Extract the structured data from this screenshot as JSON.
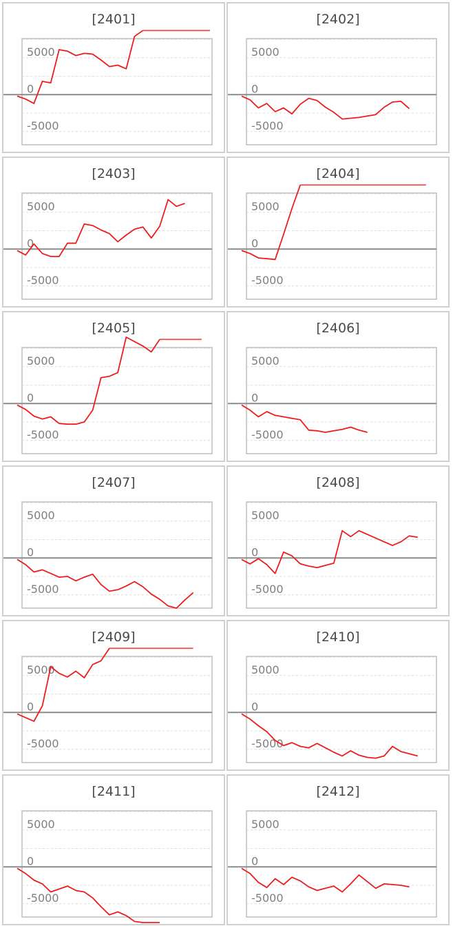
{
  "chart_data": [
    {
      "type": "line",
      "title": "[2401]",
      "ylim": [
        -6800,
        7600
      ],
      "yticks": [
        5000,
        0,
        -5000
      ],
      "series": [
        {
          "color": "#ee1c1c",
          "values": [
            -200,
            -600,
            -1200,
            1800,
            1600,
            6100,
            5900,
            5300,
            5600,
            5500,
            4700,
            3800,
            4000,
            3500,
            7900,
            8700,
            8700,
            8700,
            8700,
            8700,
            8700,
            8700,
            8700,
            8700
          ]
        }
      ]
    },
    {
      "type": "line",
      "title": "[2402]",
      "ylim": [
        -6800,
        7600
      ],
      "yticks": [
        5000,
        0,
        -5000
      ],
      "series": [
        {
          "color": "#ee1c1c",
          "values": [
            -200,
            -700,
            -1800,
            -1200,
            -2300,
            -1800,
            -2600,
            -1300,
            -500,
            -800,
            -1700,
            -2400,
            -3300,
            -3200,
            -3100,
            -2900,
            -2700,
            -1700,
            -1000,
            -900,
            -1900
          ]
        }
      ]
    },
    {
      "type": "line",
      "title": "[2403]",
      "ylim": [
        -6800,
        7600
      ],
      "yticks": [
        5000,
        0,
        -5000
      ],
      "series": [
        {
          "color": "#ee1c1c",
          "values": [
            -200,
            -800,
            700,
            -600,
            -1000,
            -1000,
            800,
            800,
            3400,
            3200,
            2600,
            2100,
            1000,
            1900,
            2700,
            3000,
            1500,
            3100,
            6700,
            5800,
            6200
          ]
        }
      ]
    },
    {
      "type": "line",
      "title": "[2404]",
      "ylim": [
        -6800,
        7600
      ],
      "yticks": [
        5000,
        0,
        -5000
      ],
      "series": [
        {
          "color": "#ee1c1c",
          "values": [
            -200,
            -600,
            -1200,
            -1300,
            -1400,
            2000,
            5500,
            8700,
            8700,
            8700,
            8700,
            8700,
            8700,
            8700,
            8700,
            8700,
            8700,
            8700,
            8700,
            8700,
            8700,
            8700,
            8700
          ]
        }
      ]
    },
    {
      "type": "line",
      "title": "[2405]",
      "ylim": [
        -6800,
        7600
      ],
      "yticks": [
        5000,
        0,
        -5000
      ],
      "series": [
        {
          "color": "#ee1c1c",
          "values": [
            -200,
            -800,
            -1700,
            -2100,
            -1800,
            -2700,
            -2800,
            -2800,
            -2500,
            -900,
            3500,
            3700,
            4200,
            9000,
            8400,
            7800,
            7000,
            8700,
            8700,
            8700,
            8700,
            8700,
            8700
          ]
        }
      ]
    },
    {
      "type": "line",
      "title": "[2406]",
      "ylim": [
        -6800,
        7600
      ],
      "yticks": [
        5000,
        0,
        -5000
      ],
      "series": [
        {
          "color": "#ee1c1c",
          "values": [
            -200,
            -900,
            -1800,
            -1100,
            -1600,
            -1800,
            -2000,
            -2200,
            -3600,
            -3700,
            -3900,
            -3700,
            -3500,
            -3200,
            -3600,
            -3900
          ]
        }
      ]
    },
    {
      "type": "line",
      "title": "[2407]",
      "ylim": [
        -6800,
        7600
      ],
      "yticks": [
        5000,
        0,
        -5000
      ],
      "series": [
        {
          "color": "#ee1c1c",
          "values": [
            -200,
            -900,
            -1900,
            -1600,
            -2100,
            -2600,
            -2500,
            -3100,
            -2600,
            -2200,
            -3600,
            -4500,
            -4300,
            -3800,
            -3200,
            -3900,
            -4900,
            -5600,
            -6500,
            -6800,
            -5700,
            -4700
          ]
        }
      ]
    },
    {
      "type": "line",
      "title": "[2408]",
      "ylim": [
        -6800,
        7600
      ],
      "yticks": [
        5000,
        0,
        -5000
      ],
      "series": [
        {
          "color": "#ee1c1c",
          "values": [
            -200,
            -800,
            -100,
            -900,
            -2100,
            800,
            300,
            -800,
            -1100,
            -1300,
            -1000,
            -700,
            3700,
            2900,
            3700,
            3200,
            2700,
            2200,
            1700,
            2200,
            3000,
            2800
          ]
        }
      ]
    },
    {
      "type": "line",
      "title": "[2409]",
      "ylim": [
        -6800,
        7600
      ],
      "yticks": [
        5000,
        0,
        -5000
      ],
      "series": [
        {
          "color": "#ee1c1c",
          "values": [
            -200,
            -700,
            -1200,
            900,
            6200,
            5300,
            4800,
            5600,
            4700,
            6500,
            7000,
            8700,
            8700,
            8700,
            8700,
            8700,
            8700,
            8700,
            8700,
            8700,
            8700,
            8700
          ]
        }
      ]
    },
    {
      "type": "line",
      "title": "[2410]",
      "ylim": [
        -6800,
        7600
      ],
      "yticks": [
        5000,
        0,
        -5000
      ],
      "series": [
        {
          "color": "#ee1c1c",
          "values": [
            -200,
            -900,
            -1800,
            -2600,
            -3800,
            -4500,
            -4100,
            -4600,
            -4800,
            -4200,
            -4800,
            -5400,
            -5900,
            -5200,
            -5800,
            -6100,
            -6200,
            -5900,
            -4600,
            -5300,
            -5600,
            -5900
          ]
        }
      ]
    },
    {
      "type": "line",
      "title": "[2411]",
      "ylim": [
        -6800,
        7600
      ],
      "yticks": [
        5000,
        0,
        -5000
      ],
      "series": [
        {
          "color": "#ee1c1c",
          "values": [
            -200,
            -900,
            -1800,
            -2300,
            -3400,
            -3000,
            -2600,
            -3200,
            -3400,
            -4200,
            -5400,
            -6500,
            -6100,
            -6600,
            -7400,
            -7600,
            -7700,
            -7700
          ]
        }
      ]
    },
    {
      "type": "line",
      "title": "[2412]",
      "ylim": [
        -6800,
        7600
      ],
      "yticks": [
        5000,
        0,
        -5000
      ],
      "series": [
        {
          "color": "#ee1c1c",
          "values": [
            -200,
            -900,
            -2100,
            -2800,
            -1600,
            -2400,
            -1400,
            -1900,
            -2700,
            -3200,
            -2900,
            -2600,
            -3400,
            -2300,
            -1100,
            -2000,
            -2900,
            -2300,
            -2400,
            -2500,
            -2700
          ]
        }
      ]
    }
  ]
}
